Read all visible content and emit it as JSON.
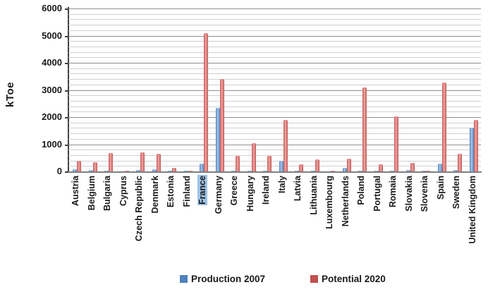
{
  "chart_data": {
    "type": "bar",
    "title": "",
    "xlabel": "",
    "ylabel": "kToe",
    "ylim": [
      0,
      6000
    ],
    "y_major_ticks": [
      0,
      1000,
      2000,
      3000,
      4000,
      5000,
      6000
    ],
    "minor_grid_step": 200,
    "grid": "on",
    "legend_position": "bottom",
    "highlighted_category": "France",
    "categories": [
      "Austria",
      "Belgium",
      "Bulgaria",
      "Cyprus",
      "Czech Republic",
      "Denmark",
      "Estonia",
      "Finland",
      "France",
      "Germany",
      "Greece",
      "Hungary",
      "Ireland",
      "Italy",
      "Latvia",
      "Lithuania",
      "Luxembourg",
      "Netherlands",
      "Poland",
      "Portugal",
      "Romaia",
      "Slovakia",
      "Slovenia",
      "Spain",
      "Sweden",
      "United Kingdom"
    ],
    "series": [
      {
        "name": "Production 2007",
        "color": "#4f81bd",
        "values": [
          90,
          60,
          10,
          0,
          45,
          70,
          10,
          10,
          280,
          2350,
          10,
          30,
          30,
          400,
          10,
          10,
          0,
          120,
          30,
          15,
          20,
          50,
          10,
          290,
          40,
          1600
        ]
      },
      {
        "name": "Potential 2020",
        "color": "#c0504d",
        "values": [
          390,
          330,
          670,
          15,
          700,
          650,
          120,
          30,
          5100,
          3400,
          570,
          1050,
          580,
          1900,
          250,
          450,
          10,
          480,
          3100,
          250,
          2020,
          300,
          25,
          3270,
          640,
          1890
        ]
      }
    ],
    "highlight_color": "#9dc3e6"
  }
}
